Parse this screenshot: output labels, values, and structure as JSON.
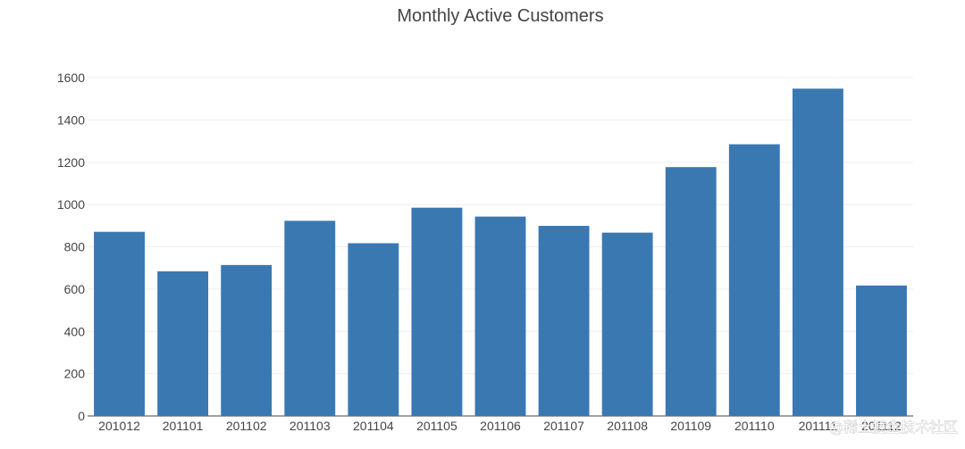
{
  "chart_data": {
    "type": "bar",
    "title": "Monthly Active Customers",
    "categories": [
      "201012",
      "201101",
      "201102",
      "201103",
      "201104",
      "201105",
      "201106",
      "201107",
      "201108",
      "201109",
      "201110",
      "201111",
      "201112"
    ],
    "values": [
      871,
      684,
      714,
      923,
      817,
      985,
      943,
      899,
      867,
      1177,
      1285,
      1548,
      617
    ],
    "xlabel": "",
    "ylabel": "",
    "ylim": [
      0,
      1600
    ],
    "yticks": [
      0,
      200,
      400,
      600,
      800,
      1000,
      1200,
      1400,
      1600
    ],
    "grid": true,
    "legend": "none",
    "bar_color": "#3a78b2"
  },
  "watermark": "@稀土掘金技术社区"
}
